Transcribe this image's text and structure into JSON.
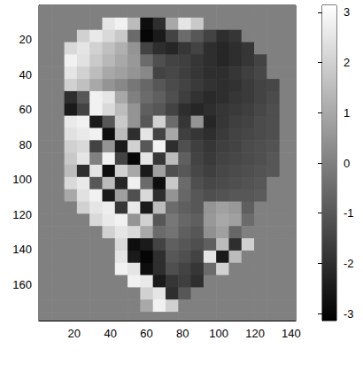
{
  "chart_data": {
    "type": "heatmap",
    "xlim": [
      0.5,
      142.5
    ],
    "xticks": [
      20,
      40,
      60,
      80,
      100,
      120,
      140
    ],
    "ylim": [
      0.5,
      180.5
    ],
    "yticks": [
      20,
      40,
      60,
      80,
      100,
      120,
      140,
      160
    ],
    "cells": {
      "x": [
        4,
        11,
        18,
        25,
        32,
        39,
        46,
        53,
        60,
        67,
        74,
        81,
        88,
        95,
        102,
        109,
        116,
        123,
        130,
        137,
        144
      ],
      "y": [
        4,
        11,
        18,
        25,
        32,
        39,
        46,
        53,
        60,
        67,
        74,
        81,
        88,
        95,
        102,
        109,
        116,
        123,
        130,
        137,
        144,
        151,
        158,
        165,
        172,
        179
      ],
      "values": [
        [
          0,
          0,
          0,
          0,
          0,
          0,
          0,
          0,
          0,
          0,
          0,
          0,
          0,
          0,
          0,
          0,
          0,
          0,
          0,
          0,
          0
        ],
        [
          0,
          0,
          0,
          0,
          0,
          2.5,
          2.8,
          1.5,
          -2.8,
          -2.0,
          1.0,
          2.5,
          1.8,
          0,
          0,
          0,
          0,
          0,
          0,
          0,
          0
        ],
        [
          0,
          0,
          0,
          2.0,
          2.6,
          2.2,
          1.8,
          -0.5,
          -3.0,
          -2.5,
          -1.5,
          -0.5,
          -1.0,
          -1.5,
          -2.0,
          -1.8,
          0,
          0,
          0,
          0,
          0
        ],
        [
          0,
          0,
          2.2,
          2.5,
          2.0,
          1.6,
          1.2,
          0.5,
          -1.5,
          -2.0,
          -2.2,
          -1.8,
          -1.5,
          -2.0,
          -2.2,
          -2.0,
          -1.8,
          0,
          0,
          0,
          0
        ],
        [
          0,
          0,
          2.8,
          2.4,
          1.8,
          1.4,
          1.0,
          0.6,
          -0.5,
          -1.2,
          -1.5,
          -1.6,
          -1.8,
          -2.0,
          -2.2,
          -2.0,
          -1.8,
          -1.5,
          0,
          0,
          0
        ],
        [
          0,
          0,
          2.5,
          2.0,
          1.5,
          1.0,
          0.8,
          0.5,
          0.2,
          -1.5,
          -1.4,
          -1.6,
          -1.8,
          -2.0,
          -2.0,
          -1.8,
          -1.6,
          -1.4,
          0,
          0,
          0
        ],
        [
          0,
          0,
          2.0,
          1.6,
          1.0,
          0.5,
          0.2,
          -0.2,
          -0.6,
          -1.0,
          -1.3,
          -1.5,
          -1.7,
          -1.9,
          -2.0,
          -1.9,
          -1.7,
          -1.5,
          -1.4,
          0,
          0
        ],
        [
          0,
          0,
          -2.0,
          -1.0,
          2.8,
          2.5,
          1.0,
          0,
          -0.5,
          -0.8,
          -1.2,
          -1.6,
          -1.9,
          -2.1,
          -2.0,
          -1.8,
          -1.7,
          -1.5,
          -1.3,
          0,
          0
        ],
        [
          0,
          0,
          -2.5,
          -1.5,
          2.8,
          2.2,
          1.5,
          0.5,
          -0.8,
          -1.0,
          -1.5,
          -2.0,
          -2.2,
          -2.0,
          -1.8,
          -1.7,
          -1.6,
          -1.4,
          -1.2,
          0,
          0
        ],
        [
          0,
          0,
          2.6,
          2.8,
          -2.5,
          -1.0,
          1.8,
          0.5,
          -1.0,
          2.0,
          -0.5,
          -1.8,
          0.5,
          -2.2,
          -1.8,
          -1.6,
          -1.5,
          -1.3,
          -1.2,
          0,
          0
        ],
        [
          0,
          0,
          2.4,
          2.6,
          2.8,
          -2.8,
          1.5,
          -2.0,
          2.5,
          -1.5,
          1.0,
          -1.6,
          -1.8,
          -2.0,
          -1.7,
          -1.5,
          -1.4,
          -1.3,
          -1.2,
          0,
          0
        ],
        [
          0,
          0,
          2.0,
          2.2,
          -1.5,
          0.5,
          -2.5,
          2.0,
          -1.0,
          2.8,
          -2.0,
          -1.2,
          -1.6,
          -1.8,
          -1.6,
          -1.5,
          -1.3,
          -1.2,
          -1.1,
          0,
          0
        ],
        [
          0,
          0,
          1.8,
          2.5,
          0,
          2.8,
          -1.5,
          -3.0,
          2.5,
          -1.8,
          1.5,
          -0.8,
          -1.5,
          -1.7,
          -1.5,
          -1.4,
          -1.3,
          -1.2,
          -1.0,
          0,
          0
        ],
        [
          0,
          0,
          1.5,
          -2.0,
          2.5,
          -2.8,
          2.0,
          1.0,
          -2.5,
          0.8,
          -1.2,
          -1.0,
          -1.4,
          -1.6,
          -1.4,
          -1.3,
          -1.2,
          -1.1,
          -1.0,
          0,
          0
        ],
        [
          0,
          0,
          2.2,
          2.6,
          -1.0,
          1.5,
          -2.2,
          2.8,
          -0.5,
          -2.8,
          1.8,
          -0.5,
          -1.2,
          -1.4,
          -1.3,
          -1.2,
          -1.1,
          -1.0,
          0,
          0,
          0
        ],
        [
          0,
          0,
          1.0,
          2.4,
          2.8,
          -2.5,
          0.8,
          -1.2,
          2.2,
          -2.0,
          0.5,
          -0.6,
          -1.0,
          -1.2,
          -1.1,
          -1.0,
          -1.0,
          -0.9,
          0,
          0,
          0
        ],
        [
          0,
          0,
          0,
          2.0,
          2.5,
          2.7,
          -1.8,
          2.6,
          -2.5,
          1.5,
          -0.5,
          -0.8,
          -1.0,
          0.5,
          0.8,
          0.6,
          -0.8,
          0,
          0,
          0,
          0
        ],
        [
          0,
          0,
          0,
          0,
          2.2,
          2.6,
          2.8,
          0.5,
          2.0,
          -1.0,
          -0.2,
          -0.6,
          -0.8,
          0.6,
          1.0,
          0.8,
          -0.5,
          0,
          0,
          0,
          0
        ],
        [
          0,
          0,
          0,
          0,
          0,
          2.0,
          2.5,
          2.2,
          1.0,
          -0.5,
          -0.3,
          -0.8,
          -1.0,
          0.4,
          0.8,
          -0.6,
          0,
          0,
          0,
          0,
          0
        ],
        [
          0,
          0,
          0,
          0,
          0,
          0,
          2.2,
          -2.8,
          -2.5,
          -1.5,
          -0.8,
          -1.0,
          -1.2,
          -0.8,
          1.5,
          -2.0,
          2.0,
          0,
          0,
          0,
          0
        ],
        [
          0,
          0,
          0,
          0,
          0,
          0,
          2.5,
          -2.5,
          -3.0,
          -2.0,
          -1.0,
          -1.2,
          -1.5,
          2.5,
          -2.5,
          1.5,
          0,
          0,
          0,
          0,
          0
        ],
        [
          0,
          0,
          0,
          0,
          0,
          0,
          2.8,
          2.5,
          -2.8,
          -2.0,
          -1.2,
          -1.5,
          -1.8,
          -0.5,
          2.0,
          0,
          0,
          0,
          0,
          0,
          0
        ],
        [
          0,
          0,
          0,
          0,
          0,
          0,
          0,
          2.8,
          2.6,
          -2.5,
          -1.8,
          -1.6,
          -2.0,
          0,
          0,
          0,
          0,
          0,
          0,
          0,
          0
        ],
        [
          0,
          0,
          0,
          0,
          0,
          0,
          0,
          0,
          2.0,
          2.5,
          -2.0,
          -1.0,
          0,
          0,
          0,
          0,
          0,
          0,
          0,
          0,
          0
        ],
        [
          0,
          0,
          0,
          0,
          0,
          0,
          0,
          0,
          1.0,
          2.8,
          2.0,
          0,
          0,
          0,
          0,
          0,
          0,
          0,
          0,
          0,
          0
        ],
        [
          0,
          0,
          0,
          0,
          0,
          0,
          0,
          0,
          0,
          0,
          0,
          0,
          0,
          0,
          0,
          0,
          0,
          0,
          0,
          0,
          0
        ]
      ]
    },
    "colorbar": {
      "range": [
        -3.14,
        3.14
      ],
      "ticks": [
        -3,
        -2,
        -1,
        0,
        1,
        2,
        3
      ]
    }
  }
}
